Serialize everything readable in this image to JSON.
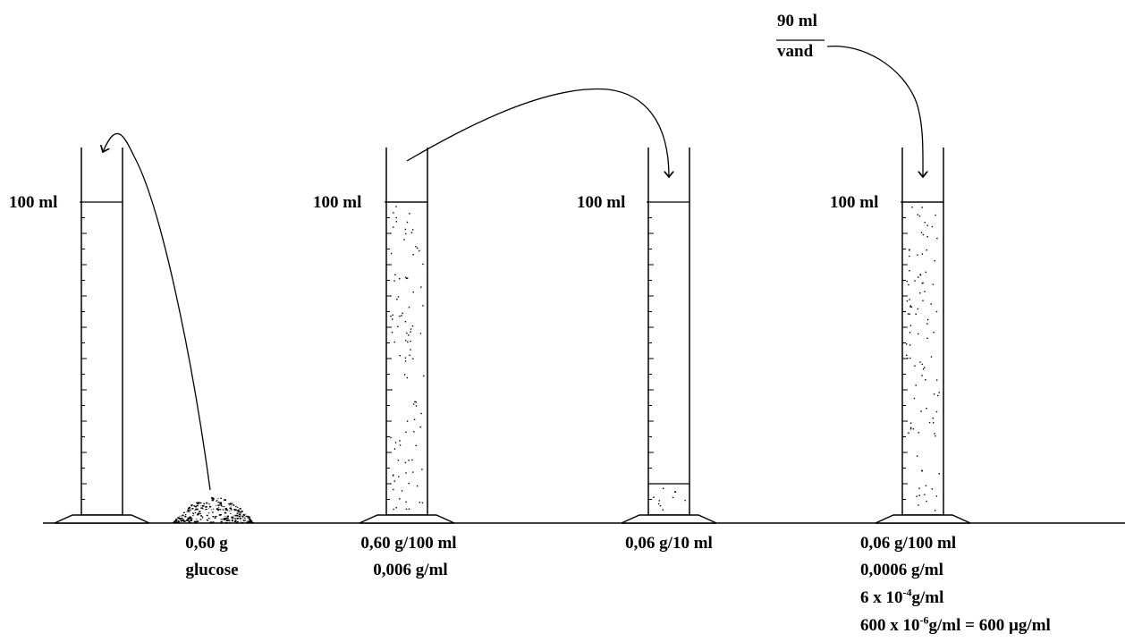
{
  "cylinders": [
    {
      "volume_label": "100 ml",
      "fill_level": 0,
      "caption_lines": [
        "0,60 g",
        "glucose"
      ]
    },
    {
      "volume_label": "100 ml",
      "fill_level": 1.0,
      "caption_lines": [
        "0,60 g/100 ml",
        "0,006 g/ml"
      ]
    },
    {
      "volume_label": "100 ml",
      "fill_level": 0.1,
      "caption_lines": [
        "0,06 g/10 ml"
      ]
    },
    {
      "volume_label": "100 ml",
      "fill_level": 1.0,
      "caption_lines": [
        "0,06 g/100 ml",
        "0,0006 g/ml"
      ]
    }
  ],
  "water": {
    "amount": "90 ml",
    "label": "vand"
  },
  "scientific": {
    "line3_base": "6 x 10",
    "line3_exp": "-4",
    "line3_rest": "g/ml",
    "line4_base": "600 x 10",
    "line4_exp": "-6",
    "line4_rest": "g/ml = 600 µg/ml"
  },
  "colors": {
    "ink": "#000000",
    "background": "#ffffff"
  }
}
